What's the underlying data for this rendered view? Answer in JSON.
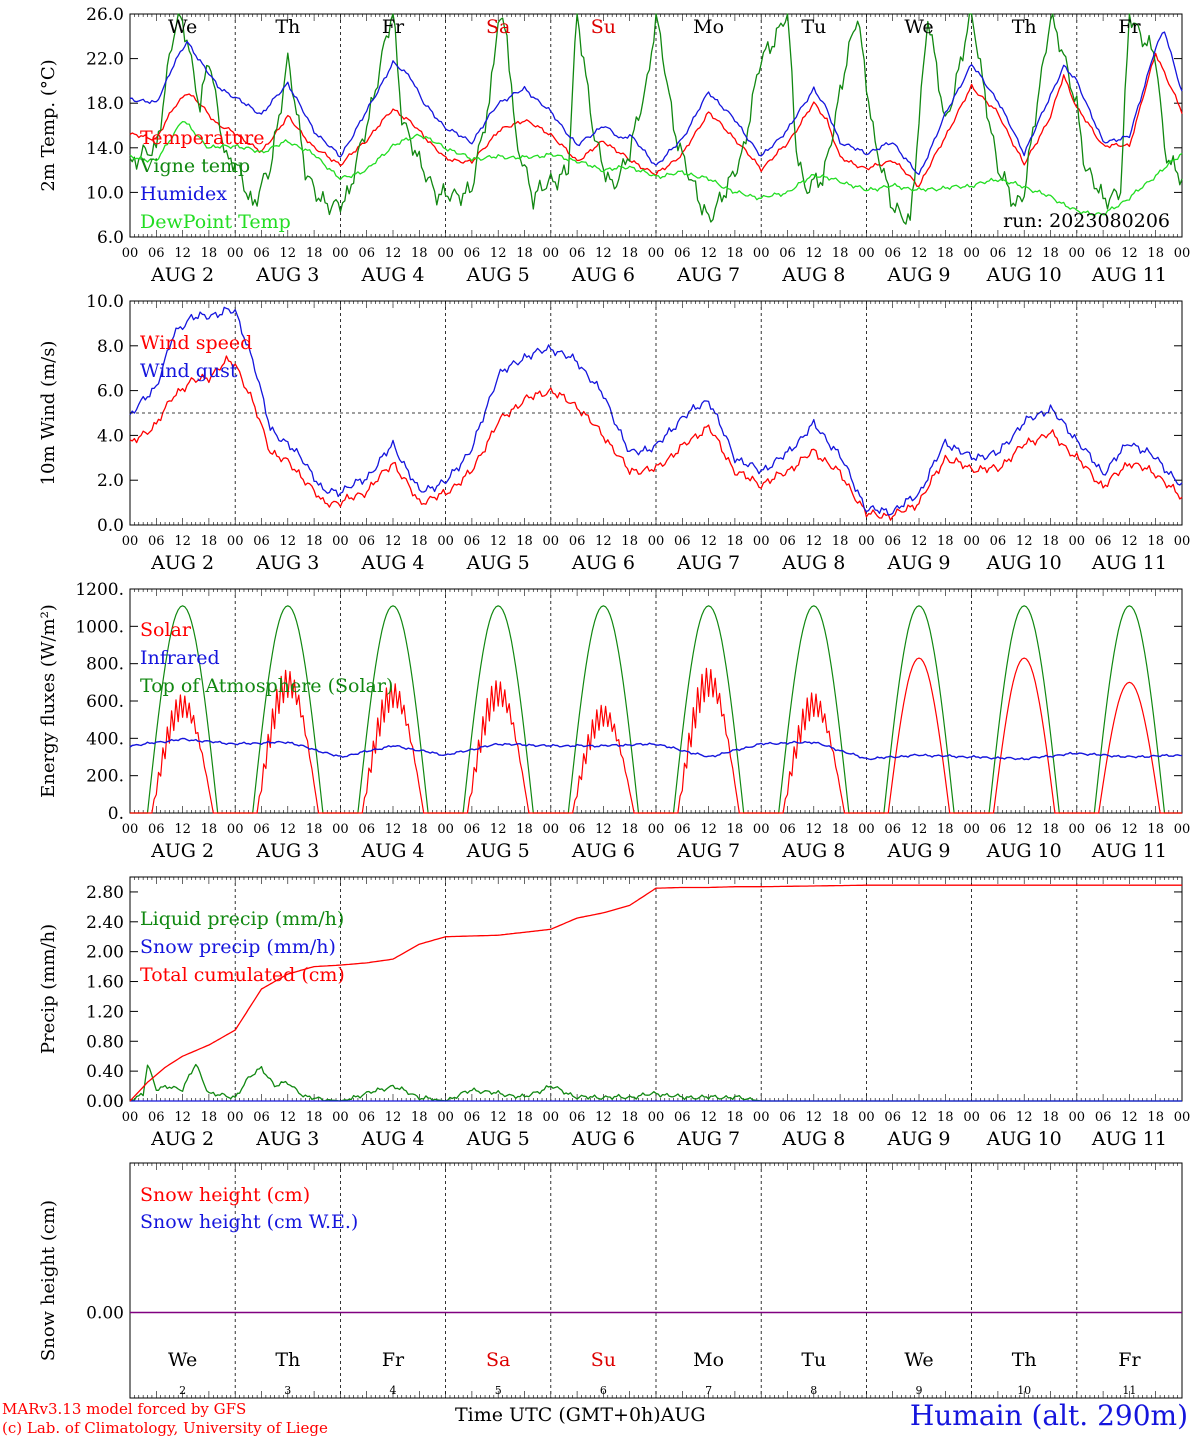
{
  "station": "Humain (alt. 290m)",
  "credits": [
    "MARv3.13 model forced by GFS",
    "(c) Lab. of Climatology, University of Liege"
  ],
  "time_axis": {
    "xlabel": "Time UTC (GMT+0h)",
    "month": "AUG",
    "day_labels": [
      "AUG  2",
      "AUG  3",
      "AUG  4",
      "AUG  5",
      "AUG  6",
      "AUG  7",
      "AUG  8",
      "AUG  9",
      "AUG 10",
      "AUG 11"
    ],
    "day_numbers": [
      "2",
      "3",
      "4",
      "5",
      "6",
      "7",
      "8",
      "9",
      "10",
      "11"
    ],
    "weekdays": [
      "We",
      "Th",
      "Fr",
      "Sa",
      "Su",
      "Mo",
      "Tu",
      "We",
      "Th",
      "Fr"
    ],
    "weekday_colors": [
      "#000000",
      "#000000",
      "#000000",
      "#dd0000",
      "#dd0000",
      "#000000",
      "#000000",
      "#000000",
      "#000000",
      "#000000"
    ],
    "hour_ticks": [
      "00",
      "06",
      "12",
      "18"
    ]
  },
  "colors": {
    "red": "#ff0000",
    "green": "#118811",
    "blue": "#1515dd",
    "lightgreen": "#22dd22",
    "purple": "#800080"
  },
  "chart_data": [
    {
      "type": "line",
      "ylabel": "2m Temp. (°C)",
      "ylim": [
        6,
        26
      ],
      "yticks": [
        "6.0",
        "10.0",
        "14.0",
        "18.0",
        "22.0",
        "26.0"
      ],
      "run_label": "run: 2023080206",
      "x_unit": "hours since 2023-08-02 00 UTC",
      "series": [
        {
          "name": "Temperature",
          "color": "#ff0000",
          "x": [
            0,
            6,
            10,
            13,
            16,
            20,
            24,
            30,
            36,
            42,
            48,
            54,
            60,
            64,
            67,
            72,
            78,
            84,
            90,
            96,
            102,
            108,
            112,
            114,
            120,
            126,
            132,
            138,
            144,
            150,
            156,
            159,
            162,
            168,
            174,
            180,
            186,
            192,
            198,
            204,
            210,
            213,
            216,
            222,
            228,
            234,
            240
          ],
          "values": [
            15.2,
            14.8,
            17.6,
            19.0,
            17.9,
            16.1,
            15.3,
            13.6,
            16.8,
            14.0,
            12.5,
            14.7,
            17.5,
            16.3,
            15.1,
            13.0,
            12.7,
            15.5,
            16.5,
            15.2,
            12.8,
            14.6,
            13.5,
            12.9,
            11.6,
            13.4,
            17.2,
            14.8,
            12.1,
            14.4,
            18.0,
            16.5,
            13.1,
            12.1,
            12.9,
            10.6,
            15.0,
            19.5,
            17.1,
            12.5,
            16.8,
            20.5,
            17.6,
            14.2,
            14.2,
            22.5,
            17.2
          ]
        },
        {
          "name": "Vigne temp",
          "color": "#118811",
          "x": [
            0,
            6,
            9,
            11,
            13,
            16,
            18,
            22,
            24,
            28,
            32,
            36,
            40,
            44,
            46,
            50,
            54,
            58,
            60,
            62,
            66,
            70,
            74,
            78,
            82,
            84,
            86,
            88,
            90,
            92,
            96,
            100,
            102,
            106,
            108,
            110,
            112,
            114,
            118,
            120,
            124,
            128,
            130,
            132,
            136,
            140,
            144,
            148,
            150,
            152,
            154,
            158,
            162,
            166,
            170,
            174,
            178,
            182,
            186,
            192,
            198,
            202,
            204,
            210,
            216,
            218,
            222,
            226,
            228,
            234,
            236,
            240
          ],
          "values": [
            12.6,
            14.0,
            22.0,
            26.0,
            24.0,
            17.5,
            22.0,
            13.0,
            12.5,
            9.0,
            12.0,
            22.0,
            12.0,
            9.0,
            8.5,
            10.0,
            16.0,
            23.0,
            26.0,
            17.0,
            12.5,
            10.0,
            9.5,
            10.5,
            18.0,
            26.0,
            24.0,
            14.5,
            12.5,
            9.5,
            11.0,
            12.0,
            26.0,
            15.0,
            12.0,
            10.5,
            12.0,
            13.5,
            20.0,
            26.0,
            16.0,
            11.0,
            9.0,
            7.8,
            10.0,
            14.0,
            22.0,
            24.5,
            26.0,
            14.0,
            10.5,
            11.0,
            19.0,
            26.0,
            14.0,
            9.0,
            7.0,
            26.0,
            16.0,
            26.0,
            12.0,
            9.0,
            10.0,
            26.0,
            18.0,
            12.0,
            9.5,
            10.0,
            26.0,
            22.0,
            14.0,
            11.0
          ]
        },
        {
          "name": "Humidex",
          "color": "#1515dd",
          "x": [
            0,
            6,
            10,
            13,
            16,
            20,
            24,
            30,
            36,
            42,
            48,
            54,
            60,
            64,
            67,
            72,
            78,
            84,
            90,
            96,
            102,
            108,
            112,
            114,
            120,
            126,
            132,
            138,
            144,
            150,
            156,
            159,
            162,
            168,
            174,
            180,
            186,
            192,
            198,
            204,
            210,
            213,
            216,
            222,
            228,
            234,
            236,
            240
          ],
          "values": [
            18.4,
            18.0,
            21.5,
            23.5,
            21.8,
            19.5,
            18.5,
            17.0,
            19.8,
            15.5,
            13.2,
            17.3,
            21.6,
            20.4,
            18.0,
            15.8,
            14.5,
            18.0,
            19.3,
            17.2,
            14.2,
            16.0,
            14.8,
            15.2,
            12.4,
            14.8,
            19.0,
            16.5,
            13.2,
            15.6,
            19.3,
            17.4,
            14.5,
            13.5,
            14.5,
            11.5,
            17.0,
            21.5,
            18.2,
            13.5,
            18.7,
            21.3,
            20.0,
            14.5,
            15.0,
            23.0,
            24.5,
            19.0
          ]
        },
        {
          "name": "DewPoint Temp",
          "color": "#22dd22",
          "x": [
            0,
            6,
            12,
            18,
            24,
            30,
            36,
            42,
            48,
            54,
            60,
            66,
            72,
            78,
            84,
            90,
            96,
            102,
            108,
            114,
            120,
            126,
            132,
            138,
            144,
            150,
            156,
            162,
            168,
            174,
            180,
            186,
            192,
            198,
            204,
            210,
            216,
            222,
            228,
            234,
            240
          ],
          "values": [
            13.2,
            12.8,
            16.5,
            14.0,
            14.2,
            13.6,
            14.6,
            13.4,
            11.2,
            12.0,
            14.2,
            15.2,
            14.0,
            13.0,
            13.2,
            13.1,
            13.4,
            12.8,
            12.0,
            12.3,
            11.4,
            11.8,
            11.2,
            10.0,
            9.5,
            10.0,
            11.6,
            11.0,
            10.2,
            10.6,
            10.2,
            10.4,
            10.6,
            11.2,
            10.5,
            9.6,
            8.3,
            8.0,
            9.5,
            11.5,
            13.5
          ]
        }
      ]
    },
    {
      "type": "line",
      "ylabel": "10m Wind (m/s)",
      "ylim": [
        0,
        10
      ],
      "yticks": [
        "0.0",
        "2.0",
        "4.0",
        "6.0",
        "8.0",
        "10.0"
      ],
      "reference_line": 5,
      "x_unit": "hours since 2023-08-02 00 UTC",
      "series": [
        {
          "name": "Wind speed",
          "color": "#ff0000",
          "x": [
            0,
            6,
            10,
            14,
            18,
            22,
            24,
            28,
            32,
            36,
            40,
            44,
            48,
            54,
            60,
            66,
            72,
            78,
            84,
            90,
            96,
            102,
            108,
            114,
            120,
            126,
            132,
            138,
            144,
            150,
            156,
            162,
            168,
            174,
            180,
            186,
            192,
            198,
            204,
            210,
            216,
            222,
            228,
            234,
            240
          ],
          "values": [
            3.6,
            4.5,
            5.8,
            6.4,
            6.6,
            7.3,
            7.2,
            5.5,
            3.3,
            2.8,
            2.0,
            1.0,
            1.0,
            1.5,
            2.8,
            1.0,
            1.4,
            2.4,
            4.6,
            5.6,
            6.0,
            5.3,
            4.0,
            2.4,
            2.5,
            3.5,
            4.4,
            2.4,
            1.8,
            2.4,
            3.3,
            2.3,
            0.5,
            0.4,
            1.0,
            3.0,
            2.5,
            2.5,
            3.6,
            4.1,
            3.0,
            1.7,
            2.8,
            2.3,
            1.2
          ]
        },
        {
          "name": "Wind gust",
          "color": "#1515dd",
          "x": [
            0,
            6,
            10,
            14,
            18,
            22,
            24,
            28,
            32,
            36,
            40,
            44,
            48,
            54,
            60,
            66,
            72,
            78,
            84,
            90,
            96,
            102,
            108,
            114,
            120,
            126,
            132,
            138,
            144,
            150,
            156,
            162,
            168,
            174,
            180,
            186,
            192,
            198,
            204,
            210,
            216,
            222,
            228,
            234,
            240
          ],
          "values": [
            4.9,
            6.2,
            8.5,
            9.3,
            9.3,
            9.6,
            9.5,
            7.4,
            4.3,
            3.6,
            2.8,
            1.5,
            1.5,
            2.1,
            3.6,
            1.5,
            1.9,
            3.4,
            6.7,
            7.5,
            7.9,
            7.3,
            5.8,
            3.2,
            3.5,
            4.8,
            5.6,
            3.0,
            2.4,
            3.2,
            4.5,
            3.1,
            0.7,
            0.6,
            1.4,
            3.7,
            3.0,
            3.2,
            4.6,
            5.2,
            3.8,
            2.3,
            3.7,
            3.0,
            1.7
          ]
        }
      ]
    },
    {
      "type": "line",
      "ylabel": "Energy fluxes (W/m²)",
      "ylim": [
        0,
        1200
      ],
      "yticks": [
        "0.",
        "200.",
        "400.",
        "600.",
        "800.",
        "1000.",
        "1200."
      ],
      "x_unit": "hours since 2023-08-02 00 UTC",
      "series": [
        {
          "name": "Solar",
          "color": "#ff0000",
          "daily_peaks": [
            670,
            810,
            740,
            750,
            610,
            820,
            680,
            830,
            830,
            700
          ]
        },
        {
          "name": "Infrared",
          "color": "#1515dd",
          "x": [
            0,
            12,
            24,
            36,
            48,
            60,
            72,
            84,
            96,
            108,
            120,
            132,
            144,
            156,
            168,
            180,
            192,
            204,
            216,
            228,
            240
          ],
          "values": [
            360,
            395,
            370,
            380,
            300,
            360,
            310,
            370,
            360,
            360,
            370,
            300,
            370,
            380,
            290,
            310,
            300,
            290,
            320,
            300,
            310
          ]
        },
        {
          "name": "Top of Atmosphere (Solar)",
          "color": "#118811",
          "daily_peak": 1110,
          "daylight_hours": [
            4,
            20
          ]
        }
      ]
    },
    {
      "type": "line",
      "ylabel": "Precip (mm/h)",
      "ylim": [
        0,
        3.0
      ],
      "yticks": [
        "0.00",
        "0.40",
        "0.80",
        "1.20",
        "1.60",
        "2.00",
        "2.40",
        "2.80"
      ],
      "x_unit": "hours since 2023-08-02 00 UTC",
      "series": [
        {
          "name": "Liquid precip (mm/h)",
          "color": "#118811",
          "x": [
            0,
            3,
            4,
            6,
            9,
            12,
            15,
            18,
            24,
            27,
            30,
            33,
            36,
            40,
            48,
            54,
            60,
            66,
            72,
            78,
            84,
            90,
            96,
            102,
            108,
            114,
            120,
            126,
            132,
            138,
            144,
            240
          ],
          "values": [
            0,
            0.1,
            0.5,
            0.15,
            0.2,
            0.15,
            0.5,
            0.1,
            0.05,
            0.3,
            0.45,
            0.2,
            0.25,
            0.05,
            0,
            0.1,
            0.2,
            0.05,
            0,
            0.15,
            0.1,
            0.05,
            0.2,
            0.05,
            0.05,
            0.05,
            0.1,
            0.05,
            0.05,
            0.05,
            0,
            0
          ]
        },
        {
          "name": "Snow precip (mm/h)",
          "color": "#1515dd",
          "x": [
            0,
            240
          ],
          "values": [
            0,
            0
          ]
        },
        {
          "name": "Total cumulated (cm)",
          "color": "#ff0000",
          "x": [
            0,
            4,
            8,
            12,
            18,
            24,
            30,
            36,
            42,
            48,
            54,
            60,
            66,
            72,
            78,
            84,
            90,
            96,
            102,
            108,
            114,
            120,
            126,
            132,
            138,
            144,
            168,
            240
          ],
          "values": [
            0,
            0.25,
            0.45,
            0.6,
            0.75,
            0.95,
            1.5,
            1.7,
            1.8,
            1.82,
            1.85,
            1.9,
            2.1,
            2.2,
            2.21,
            2.22,
            2.26,
            2.3,
            2.45,
            2.52,
            2.62,
            2.85,
            2.86,
            2.86,
            2.87,
            2.87,
            2.89,
            2.89
          ]
        }
      ]
    },
    {
      "type": "line",
      "ylabel": "Snow height (cm)",
      "yticks": [
        "0.00"
      ],
      "x_unit": "hours since 2023-08-02 00 UTC",
      "series": [
        {
          "name": "Snow height (cm)",
          "color": "#ff0000",
          "x": [
            0,
            240
          ],
          "values": [
            0,
            0
          ]
        },
        {
          "name": "Snow height (cm W.E.)",
          "color": "#1515dd",
          "x": [
            0,
            240
          ],
          "values": [
            0,
            0
          ]
        }
      ]
    }
  ]
}
